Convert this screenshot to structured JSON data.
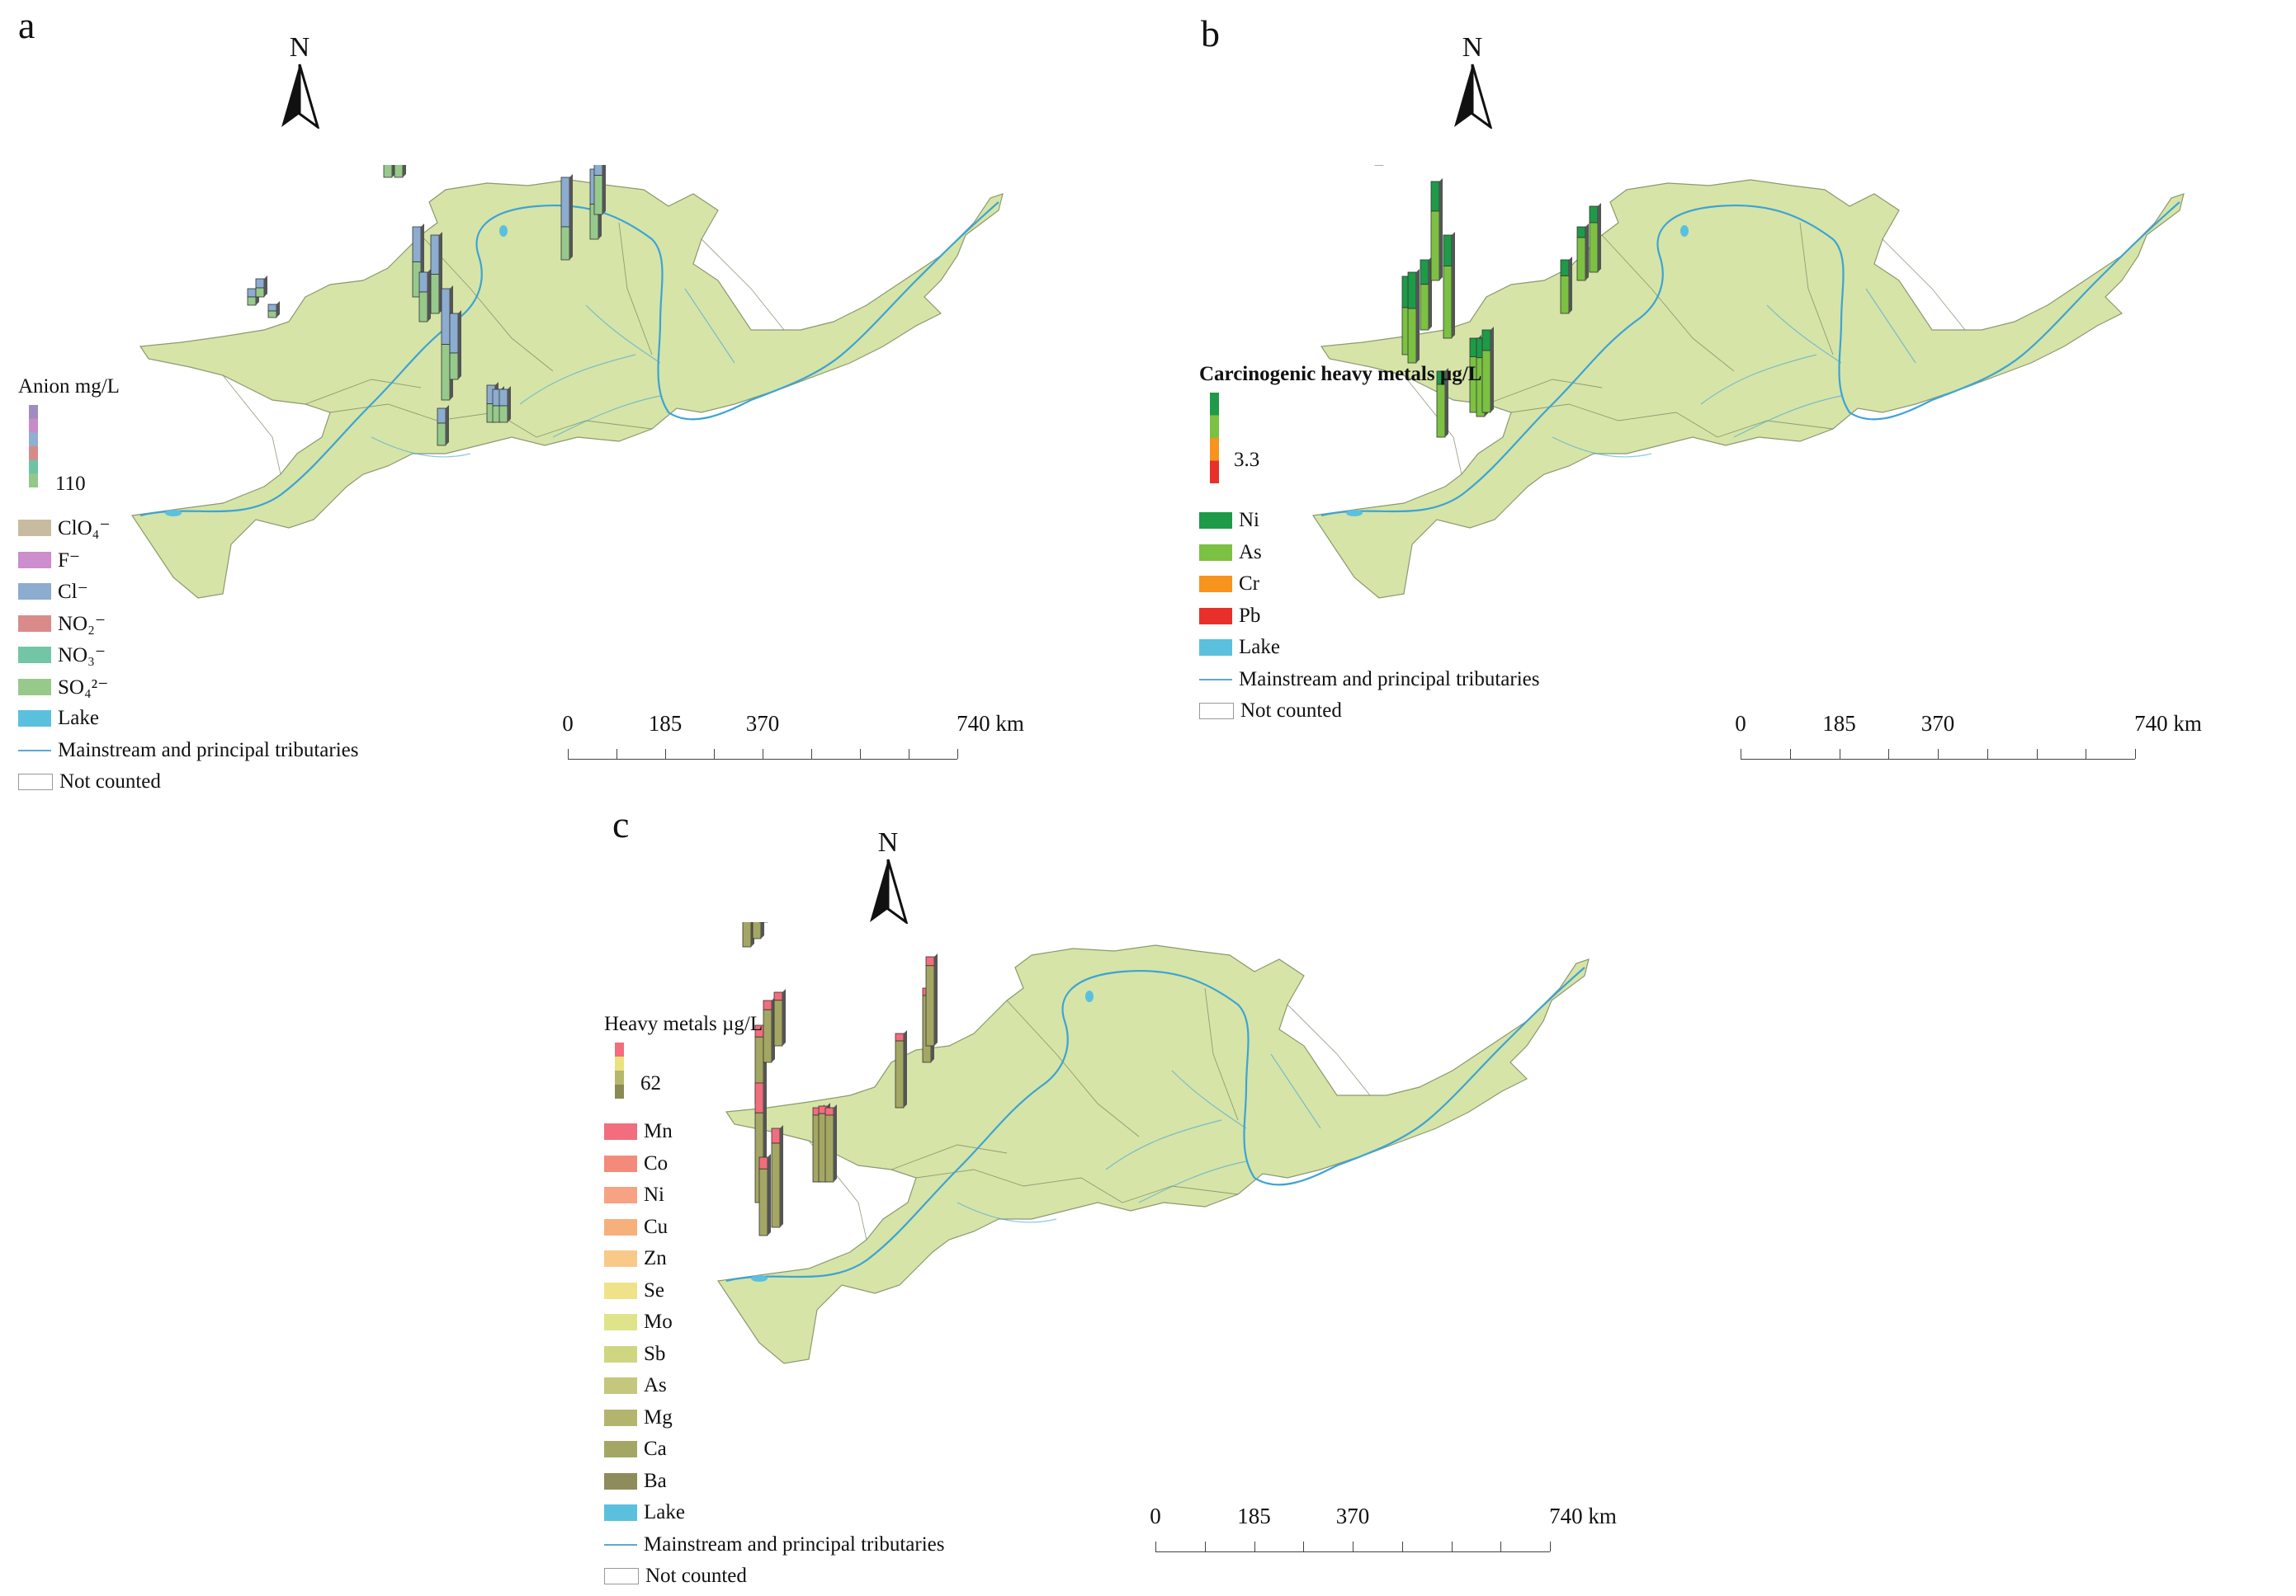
{
  "colors": {
    "basin_fill": "#d6e4a8",
    "basin_stroke": "#8a9a6e",
    "river": "#3da3d4",
    "lake": "#5bc0de"
  },
  "panels": [
    {
      "letter": "a",
      "north": "N",
      "legend": {
        "title": "Anion mg/L",
        "title_bold": false,
        "scale_value": "110",
        "scale_colors": [
          "#a08cc0",
          "#c78cc8",
          "#8fb0d0",
          "#d88a8a",
          "#6fc3a5",
          "#94c78a"
        ],
        "items": [
          {
            "label": "ClO₄⁻",
            "color": "#c8bca0",
            "kind": "swatch"
          },
          {
            "label": "F⁻",
            "color": "#cc8ecc",
            "kind": "swatch"
          },
          {
            "label": "Cl⁻",
            "color": "#8cacd0",
            "kind": "swatch"
          },
          {
            "label": "NO₂⁻",
            "color": "#d98b8b",
            "kind": "swatch"
          },
          {
            "label": "NO₃⁻",
            "color": "#72c6a6",
            "kind": "swatch"
          },
          {
            "label": "SO₄²⁻",
            "color": "#97c98b",
            "kind": "swatch"
          },
          {
            "label": "Lake",
            "color": "#5bc0de",
            "kind": "swatch"
          },
          {
            "label": "Mainstream and principal tributaries",
            "color": "#5aa9d6",
            "kind": "line"
          },
          {
            "label": "Not counted",
            "color": "#ffffff",
            "kind": "empty"
          }
        ]
      },
      "scalebar": {
        "labels": [
          "0",
          "185",
          "370",
          "740 km"
        ],
        "values": [
          0,
          185,
          370,
          740
        ]
      },
      "bar_color_top": "#8cacd0",
      "bar_color_bottom": "#97c98b"
    },
    {
      "letter": "b",
      "north": "N",
      "legend": {
        "title": "Carcinogenic heavy metals µg/L",
        "title_bold": true,
        "scale_value": "3.3",
        "scale_colors": [
          "#1e9a48",
          "#7cc142",
          "#f7941d",
          "#e8302a"
        ],
        "items": [
          {
            "label": "Ni",
            "color": "#1e9a48",
            "kind": "swatch"
          },
          {
            "label": "As",
            "color": "#7cc142",
            "kind": "swatch"
          },
          {
            "label": "Cr",
            "color": "#f7941d",
            "kind": "swatch"
          },
          {
            "label": "Pb",
            "color": "#e8302a",
            "kind": "swatch"
          },
          {
            "label": "Lake",
            "color": "#5bc0de",
            "kind": "swatch"
          },
          {
            "label": "Mainstream and principal tributaries",
            "color": "#5aa9d6",
            "kind": "line"
          },
          {
            "label": "Not counted",
            "color": "#ffffff",
            "kind": "empty"
          }
        ]
      },
      "scalebar": {
        "labels": [
          "0",
          "185",
          "370",
          "740 km"
        ],
        "values": [
          0,
          185,
          370,
          740
        ]
      },
      "bar_color_top": "#1e9a48",
      "bar_color_bottom": "#7cc142"
    },
    {
      "letter": "c",
      "north": "N",
      "legend": {
        "title": "Heavy metals µg/L",
        "title_bold": false,
        "scale_value": "62",
        "scale_colors": [
          "#f26d7d",
          "#e9e27e",
          "#b5b86a",
          "#8a8a55"
        ],
        "items": [
          {
            "label": "Mn",
            "color": "#f26d7d",
            "kind": "swatch"
          },
          {
            "label": "Co",
            "color": "#f48a7a",
            "kind": "swatch"
          },
          {
            "label": "Ni",
            "color": "#f7a282",
            "kind": "swatch"
          },
          {
            "label": "Cu",
            "color": "#f7b07c",
            "kind": "swatch"
          },
          {
            "label": "Zn",
            "color": "#f9c98a",
            "kind": "swatch"
          },
          {
            "label": "Se",
            "color": "#efe389",
            "kind": "swatch"
          },
          {
            "label": "Mo",
            "color": "#dfe38a",
            "kind": "swatch"
          },
          {
            "label": "Sb",
            "color": "#cfd682",
            "kind": "swatch"
          },
          {
            "label": "As",
            "color": "#c4c77c",
            "kind": "swatch"
          },
          {
            "label": "Mg",
            "color": "#b3b56e",
            "kind": "swatch"
          },
          {
            "label": "Ca",
            "color": "#a3a763",
            "kind": "swatch"
          },
          {
            "label": "Ba",
            "color": "#8e8c5a",
            "kind": "swatch"
          },
          {
            "label": "Lake",
            "color": "#5bc0de",
            "kind": "swatch"
          },
          {
            "label": "Mainstream and principal tributaries",
            "color": "#5aa9d6",
            "kind": "line"
          },
          {
            "label": "Not counted",
            "color": "#ffffff",
            "kind": "empty"
          }
        ]
      },
      "scalebar": {
        "labels": [
          "0",
          "185",
          "370",
          "740 km"
        ],
        "values": [
          0,
          185,
          370,
          740
        ]
      },
      "bar_color_top": "#f26d7d",
      "bar_color_bottom": "#a3a763"
    }
  ]
}
